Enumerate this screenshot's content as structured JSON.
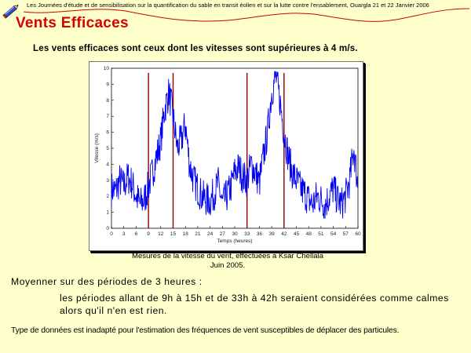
{
  "header": {
    "text": "Les Journées d'étude et de sensibilisation sur la quantification du sable en transit éolien et sur la lutte contre l'ensablement,  Ouargla 21 et 22 Janvier 2006"
  },
  "slide": {
    "title": "Vents Efficaces",
    "subtitle": "Les vents efficaces sont ceux dont les vitesses sont supérieures à 4 m/s.",
    "caption_line1": "Mesures de la vitesse du vent, effectuées à Ksar Chellala",
    "caption_line2": "Juin 2005.",
    "paragraph1": "Moyenner sur des périodes de 3 heures :",
    "paragraph2_line1": "les périodes allant de 9h à 15h et de 33h à 42h seraient considérées comme calmes",
    "paragraph2_line2": "alors qu'il n'en est rien.",
    "paragraph3": "Type de données est inadapté pour l'estimation des fréquences de vent susceptibles de déplacer des particules."
  },
  "colors": {
    "title": "#d80000",
    "background": "#ffffcc",
    "series": "#0000ee",
    "markers": "#8b0000"
  },
  "icons": {
    "header_left": "pencil-icon"
  },
  "chart_data": {
    "type": "line",
    "xlabel": "Temps (heures)",
    "ylabel": "Vitesse (m/s)",
    "x_ticks": [
      0,
      3,
      6,
      9,
      12,
      15,
      18,
      21,
      24,
      27,
      30,
      33,
      36,
      39,
      42,
      45,
      48,
      51,
      54,
      57,
      60
    ],
    "y_ticks": [
      0,
      1,
      2,
      3,
      4,
      5,
      6,
      7,
      8,
      9,
      10
    ],
    "xlim": [
      0,
      60
    ],
    "ylim": [
      0,
      10
    ],
    "grid": false,
    "vertical_markers": [
      9,
      15,
      33,
      42
    ],
    "series": [
      {
        "x": [
          0,
          1,
          2,
          3,
          4,
          5,
          6,
          7,
          8,
          9,
          10,
          11,
          12,
          13,
          14,
          15,
          16,
          17,
          18,
          19,
          20,
          21,
          22,
          23,
          24,
          25,
          26,
          27,
          28,
          29,
          30,
          31,
          32,
          33,
          34,
          35,
          36,
          37,
          38,
          39,
          40,
          41,
          42,
          43,
          44,
          45,
          46,
          47,
          48,
          49,
          50,
          51,
          52,
          53,
          54,
          55,
          56,
          57,
          58,
          59,
          60
        ],
        "values": [
          2.5,
          2.3,
          3.0,
          2.6,
          3.2,
          2.8,
          2.0,
          1.5,
          1.8,
          2.6,
          3.5,
          4.5,
          5.5,
          7.5,
          8.5,
          7.0,
          5.0,
          5.5,
          6.5,
          4.0,
          3.0,
          2.5,
          2.0,
          1.8,
          1.7,
          2.2,
          2.8,
          1.5,
          2.0,
          2.5,
          3.5,
          3.8,
          3.2,
          3.0,
          4.0,
          3.5,
          2.8,
          4.5,
          6.0,
          8.5,
          9.5,
          8.0,
          6.0,
          4.5,
          3.5,
          3.0,
          2.5,
          2.2,
          1.8,
          1.5,
          2.0,
          1.8,
          1.5,
          2.0,
          2.5,
          1.8,
          1.5,
          2.0,
          3.0,
          5.0,
          2.5
        ]
      }
    ]
  }
}
